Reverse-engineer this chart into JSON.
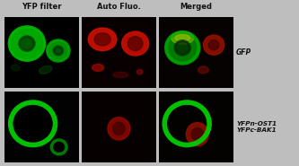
{
  "fig_width": 3.33,
  "fig_height": 1.85,
  "dpi": 100,
  "background_color": "#bebebe",
  "col_labels": [
    "YFP filter",
    "Auto Fluo.",
    "Merged"
  ],
  "row_label_gfp": "GFP",
  "row_label_bifc": "YFPn-OST1\nYFPc-BAK1",
  "col_label_color": "#111111",
  "row_label_color": "#111111",
  "label_fontsize": 6.0,
  "row_label_fontsize": 5.5
}
